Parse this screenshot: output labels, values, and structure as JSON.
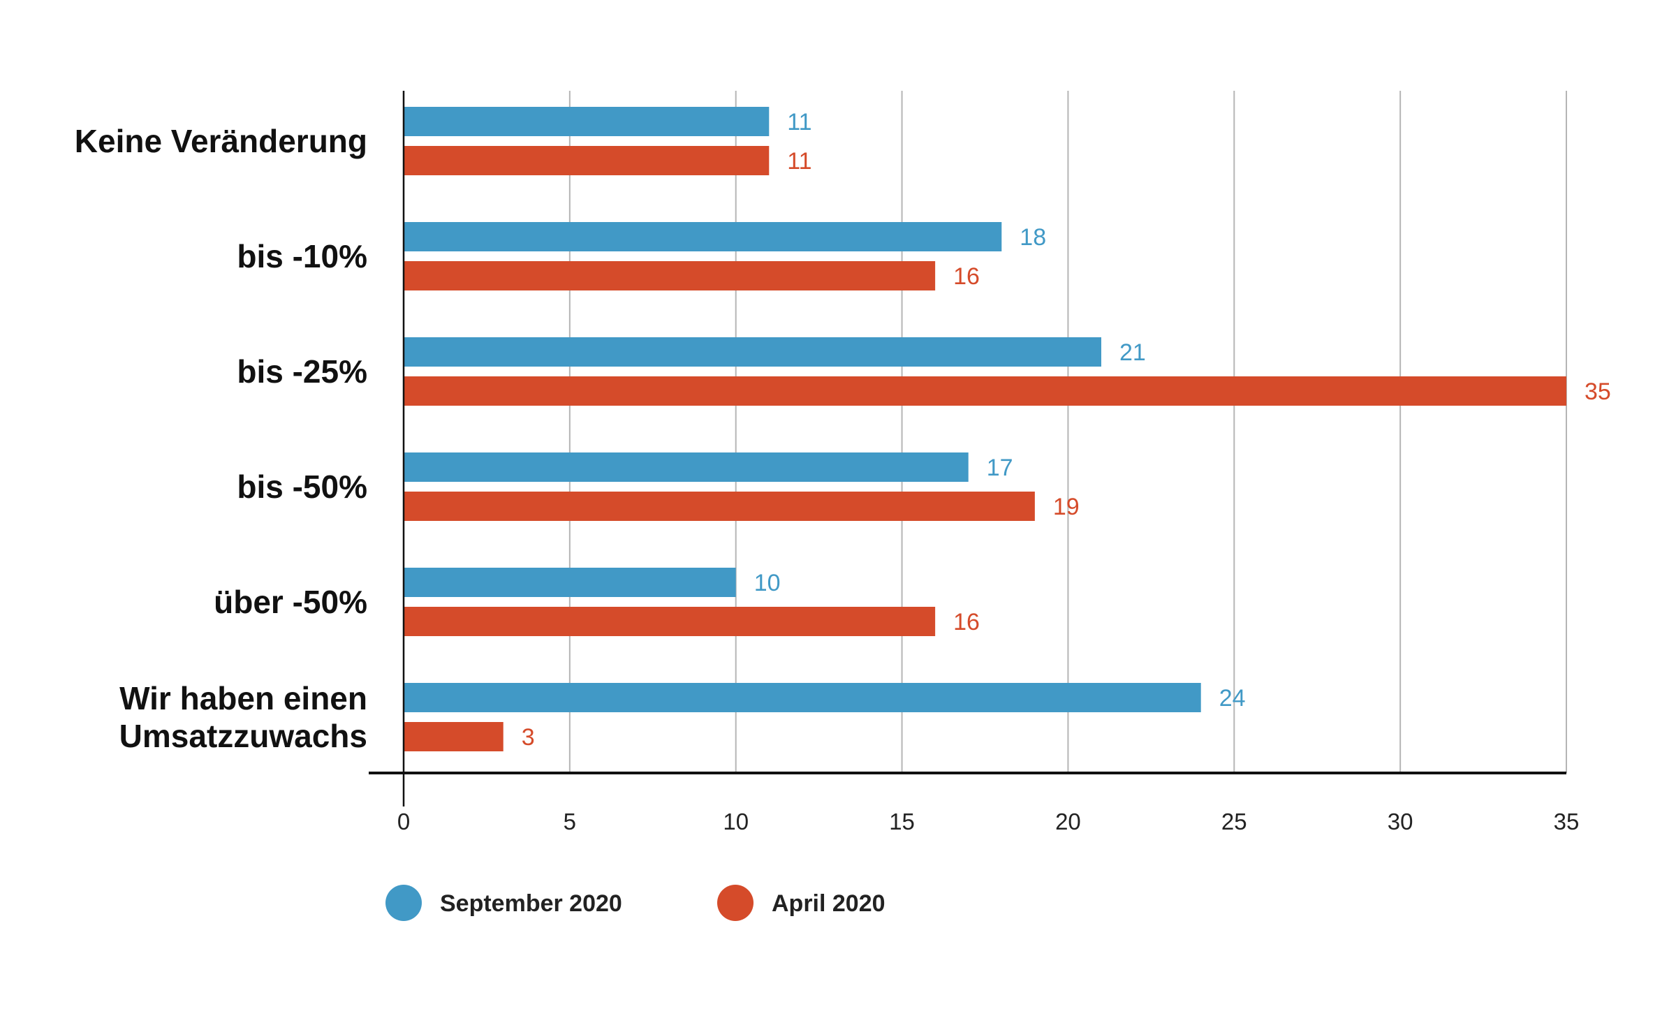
{
  "chart_data": {
    "type": "bar",
    "orientation": "horizontal",
    "categories": [
      [
        "Keine Veränderung"
      ],
      [
        "bis -10%"
      ],
      [
        "bis -25%"
      ],
      [
        "bis -50%"
      ],
      [
        "über -50%"
      ],
      [
        "Wir haben einen",
        "Umsatzzuwachs"
      ]
    ],
    "series": [
      {
        "name": "September 2020",
        "color": "#4199c6",
        "values": [
          11,
          18,
          21,
          17,
          10,
          24
        ]
      },
      {
        "name": "April 2020",
        "color": "#d54b2a",
        "values": [
          11,
          16,
          35,
          19,
          16,
          3
        ]
      }
    ],
    "x_ticks": [
      "0",
      "5",
      "10",
      "15",
      "20",
      "25",
      "30",
      "35"
    ],
    "xlim": [
      0,
      35
    ],
    "grid": true,
    "legend_position": "bottom-left",
    "data_labels": true
  }
}
